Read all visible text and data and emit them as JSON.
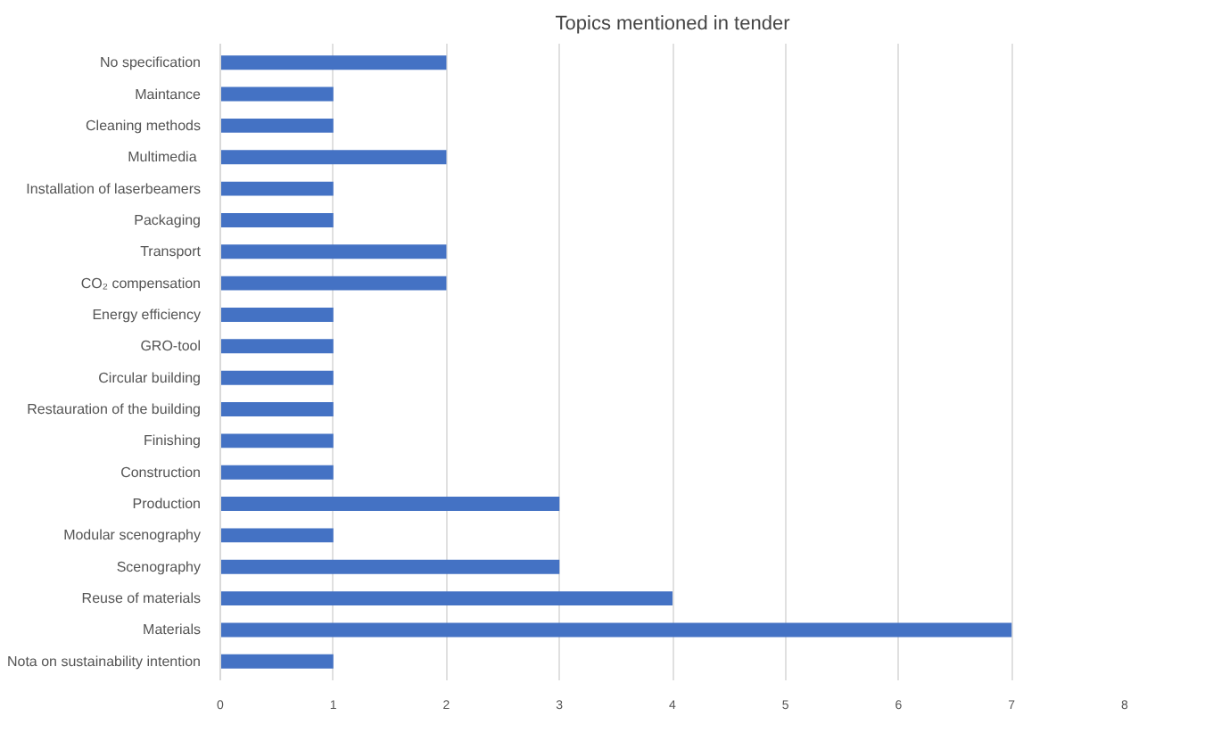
{
  "chart_data": {
    "type": "bar",
    "orientation": "horizontal",
    "title": "Topics mentioned in tender",
    "categories": [
      "No specification",
      "Maintance",
      "Cleaning methods",
      "Multimedia ",
      "Installation of laserbeamers",
      "Packaging",
      "Transport",
      "CO₂ compensation",
      "Energy efficiency",
      "GRO-tool",
      "Circular building",
      "Restauration of the building",
      "Finishing",
      "Construction",
      "Production",
      "Modular scenography",
      "Scenography",
      "Reuse of materials",
      "Materials",
      "Nota on sustainability intention"
    ],
    "values": [
      2,
      1,
      1,
      2,
      1,
      1,
      2,
      2,
      1,
      1,
      1,
      1,
      1,
      1,
      3,
      1,
      3,
      4,
      7,
      1
    ],
    "color": "#4472c4",
    "xlim": [
      0,
      8
    ],
    "xticks": [
      0,
      1,
      2,
      3,
      4,
      5,
      6,
      7,
      8
    ],
    "grid": "x"
  }
}
